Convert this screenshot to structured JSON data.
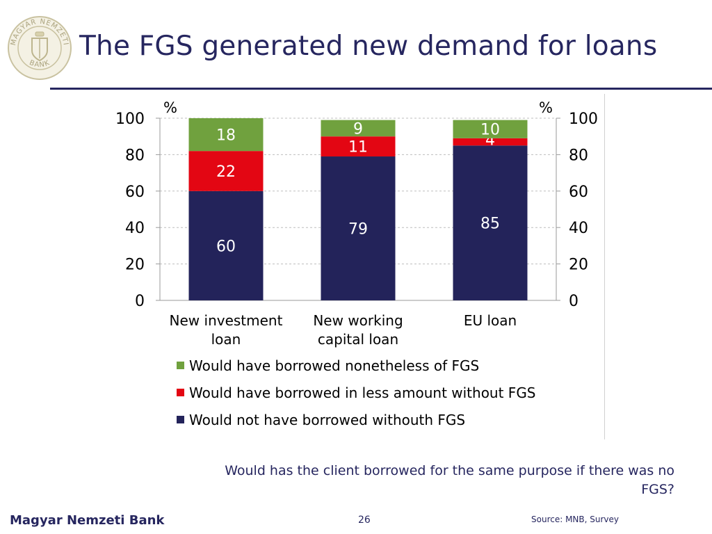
{
  "slide": {
    "title": "The FGS generated new demand for loans",
    "question": "Would has the client borrowed for the same purpose if there was no FGS?",
    "footer_bank": "Magyar Nemzeti Bank",
    "page_number": "26",
    "source": "Source: MNB, Survey"
  },
  "logo": {
    "text_top": "MAGYAR NEMZETI",
    "text_bottom": "BANK",
    "icon": "mnb-seal-icon"
  },
  "colors": {
    "accent": "#26265f",
    "green": "#70a13e",
    "red": "#e30613",
    "navy": "#23235a"
  },
  "chart_data": {
    "type": "bar",
    "stacked": true,
    "categories": [
      [
        "New investment",
        "loan"
      ],
      [
        "New working",
        "capital loan"
      ],
      [
        "EU loan"
      ]
    ],
    "series": [
      {
        "name": "Would not have borrowed withouth FGS",
        "color": "#23235a",
        "label_color": "#ffffff",
        "values": [
          60,
          79,
          85
        ]
      },
      {
        "name": "Would have borrowed in less amount without FGS",
        "color": "#e30613",
        "label_color": "#ffffff",
        "values": [
          22,
          11,
          4
        ]
      },
      {
        "name": "Would have borrowed nonetheless of FGS",
        "color": "#70a13e",
        "label_color": "#ffffff",
        "values": [
          18,
          9,
          10
        ]
      }
    ],
    "legend_order": [
      2,
      1,
      0
    ],
    "ylim": [
      0,
      100
    ],
    "yticks": [
      0,
      20,
      40,
      60,
      80,
      100
    ],
    "y_unit_left": "%",
    "y_unit_right": "%",
    "grid": true,
    "legend_position": "bottom"
  }
}
